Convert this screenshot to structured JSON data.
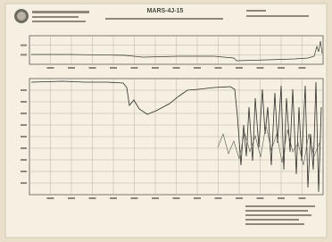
{
  "header": {
    "title": "MARS-4J-15"
  }
}
